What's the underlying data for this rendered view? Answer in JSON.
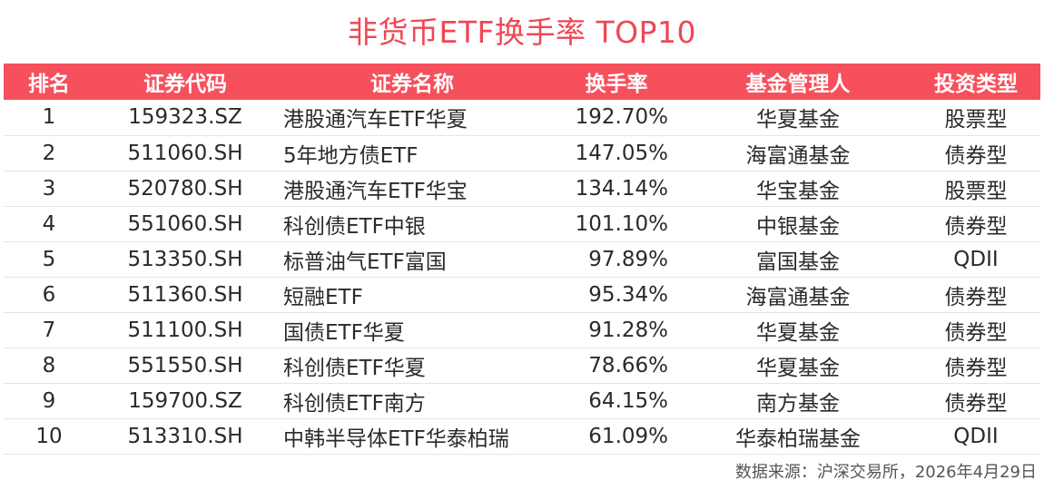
{
  "title": "非货币ETF换手率 TOP10",
  "table": {
    "headers": [
      "排名",
      "证券代码",
      "证券名称",
      "换手率",
      "基金管理人",
      "投资类型"
    ],
    "rows": [
      [
        "1",
        "159323.SZ",
        "港股通汽车ETF华夏",
        "192.70%",
        "华夏基金",
        "股票型"
      ],
      [
        "2",
        "511060.SH",
        "5年地方债ETF",
        "147.05%",
        "海富通基金",
        "债券型"
      ],
      [
        "3",
        "520780.SH",
        "港股通汽车ETF华宝",
        "134.14%",
        "华宝基金",
        "股票型"
      ],
      [
        "4",
        "551060.SH",
        "科创债ETF中银",
        "101.10%",
        "中银基金",
        "债券型"
      ],
      [
        "5",
        "513350.SH",
        "标普油气ETF富国",
        "97.89%",
        "富国基金",
        "QDII"
      ],
      [
        "6",
        "511360.SH",
        "短融ETF",
        "95.34%",
        "海富通基金",
        "债券型"
      ],
      [
        "7",
        "511100.SH",
        "国债ETF华夏",
        "91.28%",
        "华夏基金",
        "债券型"
      ],
      [
        "8",
        "551550.SH",
        "科创债ETF华夏",
        "78.66%",
        "华夏基金",
        "债券型"
      ],
      [
        "9",
        "159700.SZ",
        "科创债ETF南方",
        "64.15%",
        "南方基金",
        "债券型"
      ],
      [
        "10",
        "513310.SH",
        "中韩半导体ETF华泰柏瑞",
        "61.09%",
        "华泰柏瑞基金",
        "QDII"
      ]
    ]
  },
  "source": "数据来源：沪深交易所，2026年4月29日",
  "colors": {
    "header_bg": "#f6505c",
    "title": "#f04654"
  }
}
